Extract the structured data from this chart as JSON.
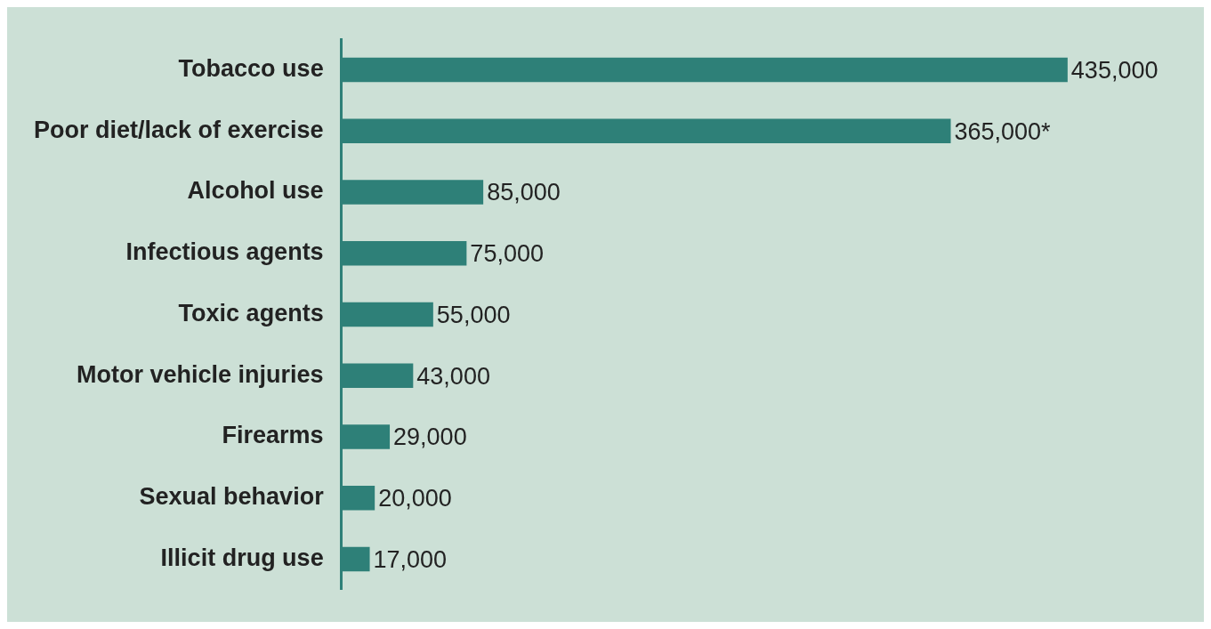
{
  "chart_data": {
    "type": "bar",
    "orientation": "horizontal",
    "categories": [
      "Tobacco use",
      "Poor diet/lack of exercise",
      "Alcohol use",
      "Infectious agents",
      "Toxic agents",
      "Motor vehicle injuries",
      "Firearms",
      "Sexual behavior",
      "Illicit drug use"
    ],
    "values": [
      435000,
      365000,
      85000,
      75000,
      55000,
      43000,
      29000,
      20000,
      17000
    ],
    "value_labels": [
      "435,000",
      "365,000*",
      "85,000",
      "75,000",
      "55,000",
      "43,000",
      "29,000",
      "20,000",
      "17,000"
    ],
    "color": "#2e8078",
    "grid": false,
    "legend": false
  }
}
